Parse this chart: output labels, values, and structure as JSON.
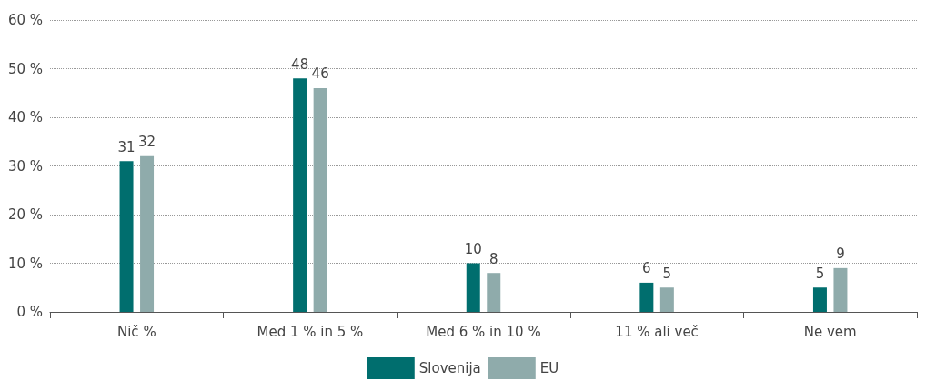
{
  "chart_data": {
    "type": "bar",
    "categories": [
      "Nič %",
      "Med 1 % in 5 %",
      "Med 6 % in 10 %",
      "11 % ali več",
      "Ne vem"
    ],
    "series": [
      {
        "name": "Slovenija",
        "color": "#006e6e",
        "values": [
          31,
          48,
          10,
          6,
          5
        ]
      },
      {
        "name": "EU",
        "color": "#8fabab",
        "values": [
          32,
          46,
          8,
          5,
          9
        ]
      }
    ],
    "ylim": [
      0,
      60
    ],
    "yticks": [
      {
        "value": 0,
        "label": "0 %"
      },
      {
        "value": 10,
        "label": "10 %"
      },
      {
        "value": 20,
        "label": "20 %"
      },
      {
        "value": 30,
        "label": "30 %"
      },
      {
        "value": 40,
        "label": "40 %"
      },
      {
        "value": 50,
        "label": "50 %"
      },
      {
        "value": 60,
        "label": "60 %"
      }
    ],
    "grid": "y",
    "legend": "bottom",
    "data_labels": true
  }
}
